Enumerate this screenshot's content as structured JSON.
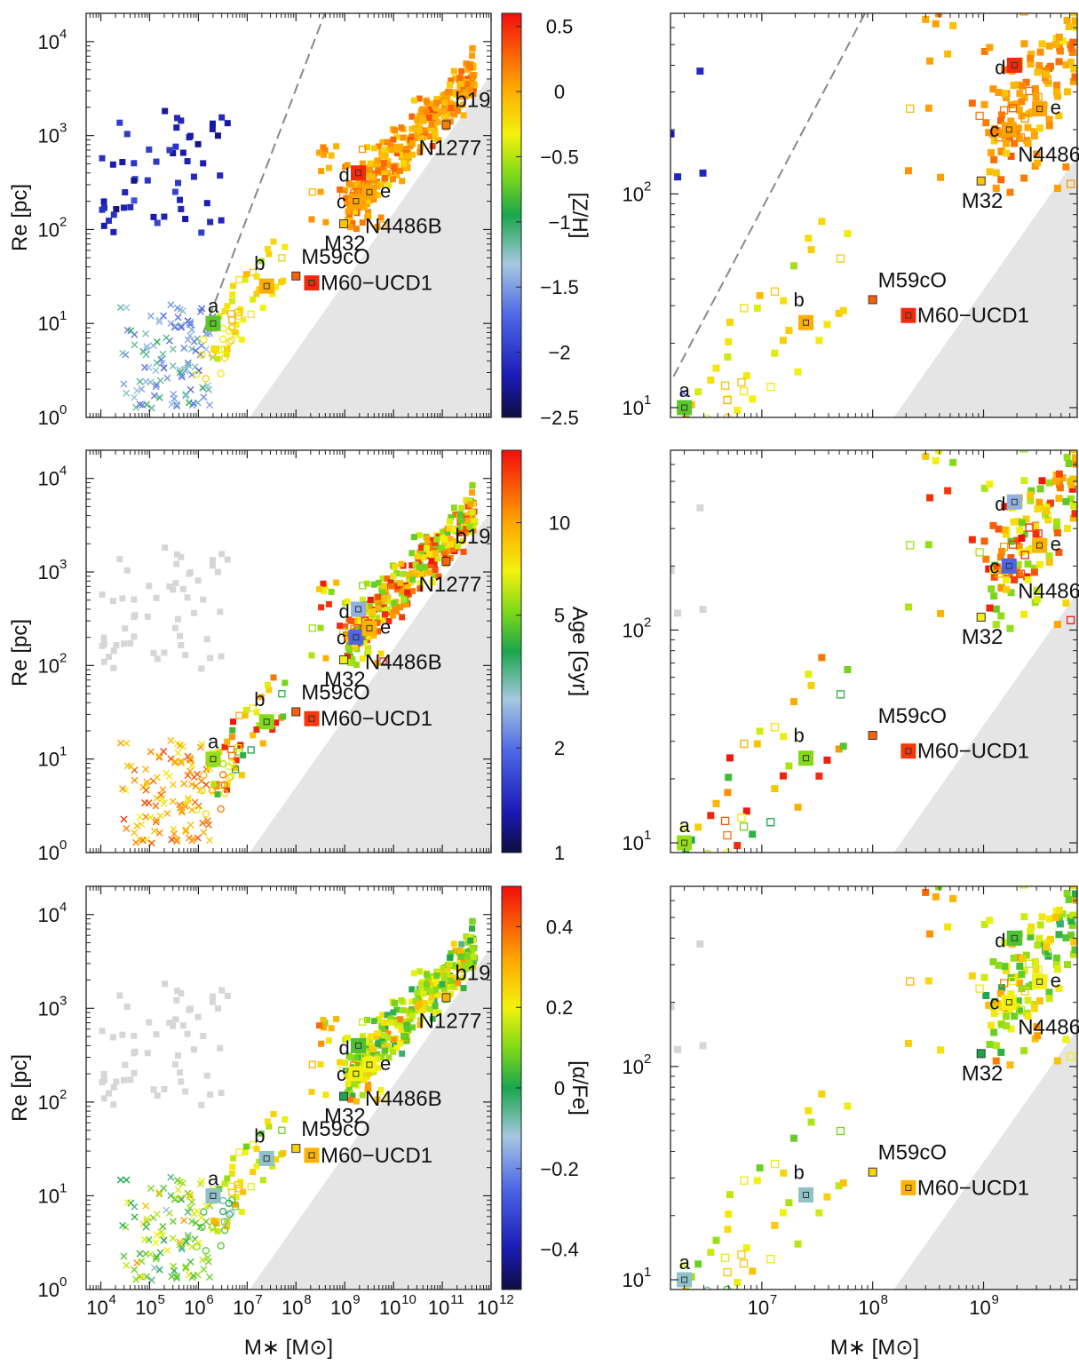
{
  "figure": {
    "xlabel": "M∗ [M⊙]",
    "ylabel": "Re [pc]",
    "rows": [
      {
        "colorbar_label": "[Z/H]",
        "cmin": -2.5,
        "cmax": 0.6,
        "ticks": [
          "0.5",
          "0",
          "−0.5",
          "−1",
          "−1.5",
          "−2",
          "−2.5"
        ],
        "tick_values": [
          0.5,
          0,
          -0.5,
          -1,
          -1.5,
          -2,
          -2.5
        ]
      },
      {
        "colorbar_label": "Age [Gyr]",
        "cmin": 0,
        "cmax": 1,
        "ticks": [
          "10",
          "5",
          "2",
          "1"
        ],
        "tick_fracs": [
          0.82,
          0.59,
          0.26,
          0.0
        ]
      },
      {
        "colorbar_label": "[α/Fe]",
        "cmin": -0.5,
        "cmax": 0.5,
        "ticks": [
          "0.4",
          "0.2",
          "0",
          "−0.2",
          "−0.4"
        ],
        "tick_values": [
          0.4,
          0.2,
          0,
          -0.2,
          -0.4
        ]
      }
    ],
    "left_x_ticks": [
      "10",
      "10",
      "10",
      "10",
      "10",
      "10",
      "10",
      "10",
      "10"
    ],
    "left_x_exps": [
      "4",
      "5",
      "6",
      "7",
      "8",
      "9",
      "10",
      "11",
      "12"
    ],
    "right_x_ticks": [
      "10",
      "10",
      "10"
    ],
    "right_x_exps": [
      "7",
      "8",
      "9"
    ],
    "left_y_ticks": [
      "10",
      "10",
      "10",
      "10",
      "10"
    ],
    "left_y_exps": [
      "0",
      "1",
      "2",
      "3",
      "4"
    ],
    "right_y_ticks": [
      "10",
      "10"
    ],
    "right_y_exps": [
      "1",
      "2"
    ],
    "labels": {
      "a": "a",
      "b": "b",
      "c": "c",
      "d": "d",
      "e": "e",
      "b19": "b19",
      "n1277": "N1277",
      "n4486b": "N4486B",
      "m32": "M32",
      "m59co": "M59cO",
      "m60": "M60−UCD1"
    }
  },
  "chart_data": [
    {
      "type": "scatter",
      "panel": "row1-left",
      "color_by": "[Z/H]",
      "xlabel": "",
      "ylabel": "Re [pc]",
      "x_scale": "log",
      "y_scale": "log",
      "xlim": [
        5000,
        1000000000000
      ],
      "ylim": [
        1,
        20000
      ],
      "reference_line": "dashed grey line, slope ~ upper envelope",
      "excluded_region": "grey shaded wedge lower right",
      "labeled_objects": [
        {
          "name": "a",
          "x": 2000000,
          "y": 10,
          "z": -0.75
        },
        {
          "name": "b",
          "x": 25000000,
          "y": 25,
          "z": 0.0
        },
        {
          "name": "c",
          "x": 1700000000,
          "y": 200,
          "z": 0.05
        },
        {
          "name": "d",
          "x": 1900000000,
          "y": 400,
          "z": 0.5
        },
        {
          "name": "e",
          "x": 3200000000,
          "y": 250,
          "z": 0.0
        },
        {
          "name": "M32",
          "x": 950000000,
          "y": 115,
          "z": -0.1
        },
        {
          "name": "N4486B",
          "x": 1700000000,
          "y": 200,
          "z": 0.05
        },
        {
          "name": "M59cO",
          "x": 100000000,
          "y": 32,
          "z": 0.3
        },
        {
          "name": "M60−UCD1",
          "x": 200000000,
          "y": 27,
          "z": 0.5
        },
        {
          "name": "N1277",
          "x": 50000000000,
          "y": 1300,
          "z": 0.2
        },
        {
          "name": "b19",
          "x": 120000000000,
          "y": 1300,
          "z": 0.2
        }
      ]
    },
    {
      "type": "scatter",
      "panel": "row1-right",
      "color_by": "[Z/H]",
      "x_scale": "log",
      "y_scale": "log",
      "xlim": [
        1500000,
        7000000000
      ],
      "ylim": [
        9,
        700
      ],
      "labeled_objects": [
        {
          "name": "a",
          "x": 2000000,
          "y": 10
        },
        {
          "name": "b",
          "x": 25000000,
          "y": 25
        },
        {
          "name": "c",
          "x": 1700000000,
          "y": 200
        },
        {
          "name": "d",
          "x": 1900000000,
          "y": 400
        },
        {
          "name": "e",
          "x": 3200000000,
          "y": 250
        },
        {
          "name": "M32",
          "x": 950000000,
          "y": 115
        },
        {
          "name": "N4486B",
          "x": 1700000000,
          "y": 200
        },
        {
          "name": "M59cO",
          "x": 100000000,
          "y": 32
        },
        {
          "name": "M60−UCD1",
          "x": 220000000,
          "y": 27
        }
      ]
    },
    {
      "type": "scatter",
      "panel": "row2-left",
      "color_by": "Age [Gyr]",
      "x_scale": "log",
      "y_scale": "log",
      "xlim": [
        5000,
        1000000000000
      ],
      "ylim": [
        1,
        20000
      ],
      "labeled_objects": [
        {
          "name": "a",
          "x": 2000000,
          "y": 10
        },
        {
          "name": "b",
          "x": 25000000,
          "y": 25
        },
        {
          "name": "c",
          "x": 1700000000,
          "y": 200
        },
        {
          "name": "d",
          "x": 1900000000,
          "y": 400
        },
        {
          "name": "e",
          "x": 3200000000,
          "y": 250
        },
        {
          "name": "M32",
          "x": 950000000,
          "y": 115
        },
        {
          "name": "N4486B",
          "x": 1700000000,
          "y": 200
        },
        {
          "name": "M59cO",
          "x": 100000000,
          "y": 32
        },
        {
          "name": "M60−UCD1",
          "x": 200000000,
          "y": 27
        },
        {
          "name": "N1277",
          "x": 50000000000,
          "y": 1300
        },
        {
          "name": "b19",
          "x": 120000000000,
          "y": 1300
        }
      ]
    },
    {
      "type": "scatter",
      "panel": "row2-right",
      "color_by": "Age [Gyr]",
      "x_scale": "log",
      "y_scale": "log",
      "xlim": [
        1500000,
        7000000000
      ],
      "ylim": [
        9,
        700
      ],
      "labeled_objects": [
        {
          "name": "a",
          "x": 2000000,
          "y": 10
        },
        {
          "name": "b",
          "x": 25000000,
          "y": 25
        },
        {
          "name": "c",
          "x": 1700000000,
          "y": 200
        },
        {
          "name": "d",
          "x": 1900000000,
          "y": 400
        },
        {
          "name": "e",
          "x": 3200000000,
          "y": 250
        },
        {
          "name": "M32",
          "x": 950000000,
          "y": 115
        },
        {
          "name": "N4486B",
          "x": 1700000000,
          "y": 200
        },
        {
          "name": "M59cO",
          "x": 100000000,
          "y": 32
        },
        {
          "name": "M60−UCD1",
          "x": 220000000,
          "y": 27
        }
      ]
    },
    {
      "type": "scatter",
      "panel": "row3-left",
      "color_by": "[α/Fe]",
      "xlabel": "M∗ [M⊙]",
      "x_scale": "log",
      "y_scale": "log",
      "xlim": [
        5000,
        1000000000000
      ],
      "ylim": [
        1,
        20000
      ],
      "labeled_objects": [
        {
          "name": "a",
          "x": 2000000,
          "y": 10
        },
        {
          "name": "b",
          "x": 25000000,
          "y": 25
        },
        {
          "name": "c",
          "x": 1700000000,
          "y": 200
        },
        {
          "name": "d",
          "x": 1900000000,
          "y": 400
        },
        {
          "name": "e",
          "x": 3200000000,
          "y": 250
        },
        {
          "name": "M32",
          "x": 950000000,
          "y": 115
        },
        {
          "name": "N4486B",
          "x": 1700000000,
          "y": 200
        },
        {
          "name": "M59cO",
          "x": 100000000,
          "y": 32
        },
        {
          "name": "M60−UCD1",
          "x": 200000000,
          "y": 27
        },
        {
          "name": "N1277",
          "x": 50000000000,
          "y": 1300
        },
        {
          "name": "b19",
          "x": 120000000000,
          "y": 1300
        }
      ]
    },
    {
      "type": "scatter",
      "panel": "row3-right",
      "color_by": "[α/Fe]",
      "xlabel": "M∗ [M⊙]",
      "x_scale": "log",
      "y_scale": "log",
      "xlim": [
        1500000,
        7000000000
      ],
      "ylim": [
        9,
        700
      ],
      "labeled_objects": [
        {
          "name": "a",
          "x": 2000000,
          "y": 10
        },
        {
          "name": "b",
          "x": 25000000,
          "y": 25
        },
        {
          "name": "c",
          "x": 1700000000,
          "y": 200
        },
        {
          "name": "d",
          "x": 1900000000,
          "y": 400
        },
        {
          "name": "e",
          "x": 3200000000,
          "y": 250
        },
        {
          "name": "M32",
          "x": 950000000,
          "y": 115
        },
        {
          "name": "N4486B",
          "x": 1700000000,
          "y": 200
        },
        {
          "name": "M59cO",
          "x": 100000000,
          "y": 32
        },
        {
          "name": "M60−UCD1",
          "x": 220000000,
          "y": 27
        }
      ]
    }
  ]
}
